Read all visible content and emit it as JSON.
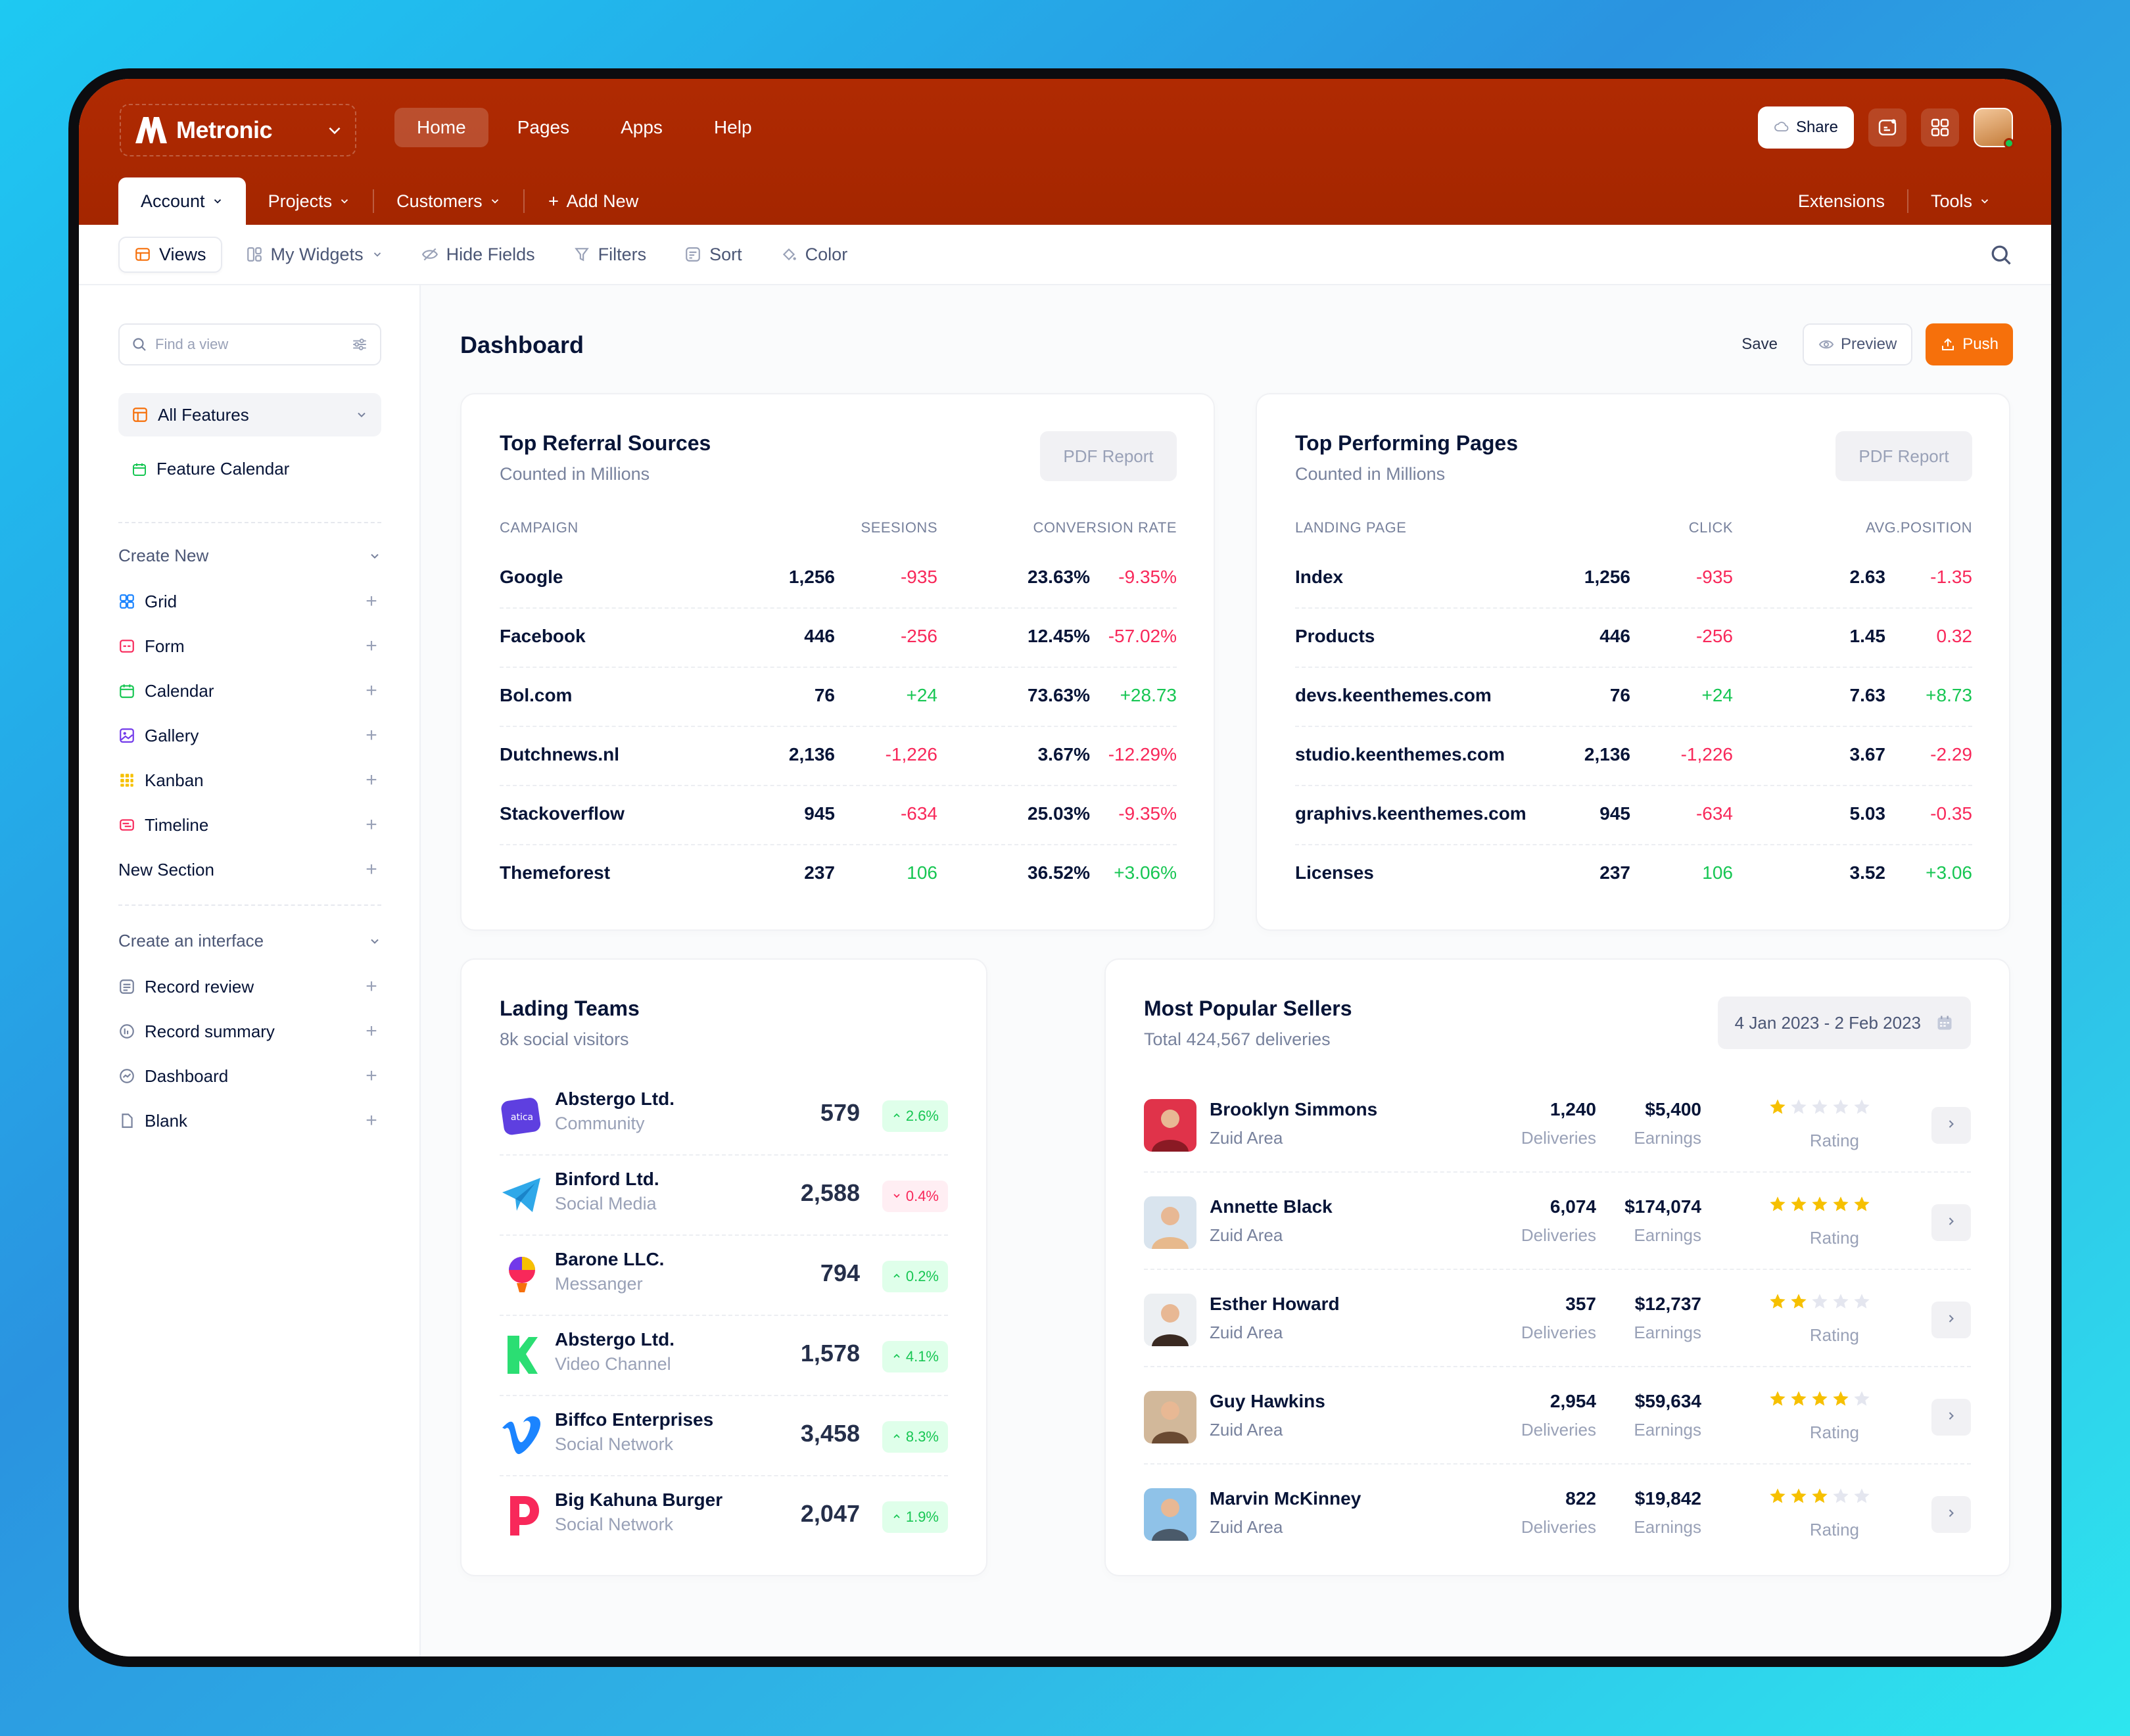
{
  "brand": {
    "name": "Metronic"
  },
  "nav": {
    "items": [
      "Home",
      "Pages",
      "Apps",
      "Help"
    ],
    "active": "Home"
  },
  "header": {
    "share_label": "Share"
  },
  "subnav": {
    "items": [
      "Account",
      "Projects",
      "Customers",
      "Add New"
    ],
    "right": [
      "Extensions",
      "Tools"
    ]
  },
  "toolbar": {
    "items": [
      "Views",
      "My Widgets",
      "Hide Fields",
      "Filters",
      "Sort",
      "Color"
    ]
  },
  "sidebar": {
    "find_placeholder": "Find a view",
    "all_features": "All Features",
    "feature_calendar": "Feature Calendar",
    "create_new": {
      "title": "Create New",
      "items": [
        "Grid",
        "Form",
        "Calendar",
        "Gallery",
        "Kanban",
        "Timeline",
        "New Section"
      ]
    },
    "create_interface": {
      "title": "Create an interface",
      "items": [
        "Record review",
        "Record summary",
        "Dashboard",
        "Blank"
      ]
    }
  },
  "page": {
    "title": "Dashboard",
    "save": "Save",
    "preview": "Preview",
    "push": "Push"
  },
  "referral": {
    "title": "Top Referral Sources",
    "subtitle": "Counted in Millions",
    "pdf": "PDF Report",
    "headers": [
      "Campaign",
      "Seesions",
      "Conversion Rate"
    ],
    "rows": [
      {
        "name": "Google",
        "sessions": "1,256",
        "sdelta": "-935",
        "rate": "23.63%",
        "rdelta": "-9.35%"
      },
      {
        "name": "Facebook",
        "sessions": "446",
        "sdelta": "-256",
        "rate": "12.45%",
        "rdelta": "-57.02%"
      },
      {
        "name": "Bol.com",
        "sessions": "76",
        "sdelta": "+24",
        "rate": "73.63%",
        "rdelta": "+28.73"
      },
      {
        "name": "Dutchnews.nl",
        "sessions": "2,136",
        "sdelta": "-1,226",
        "rate": "3.67%",
        "rdelta": "-12.29%"
      },
      {
        "name": "Stackoverflow",
        "sessions": "945",
        "sdelta": "-634",
        "rate": "25.03%",
        "rdelta": "-9.35%"
      },
      {
        "name": "Themeforest",
        "sessions": "237",
        "sdelta": "106",
        "rate": "36.52%",
        "rdelta": "+3.06%"
      }
    ]
  },
  "pages": {
    "title": "Top Performing Pages",
    "subtitle": "Counted in Millions",
    "pdf": "PDF Report",
    "headers": [
      "Landing Page",
      "Click",
      "Avg.Position"
    ],
    "rows": [
      {
        "name": "Index",
        "clicks": "1,256",
        "cdelta": "-935",
        "pos": "2.63",
        "pdelta": "-1.35"
      },
      {
        "name": "Products",
        "clicks": "446",
        "cdelta": "-256",
        "pos": "1.45",
        "pdelta": "0.32"
      },
      {
        "name": "devs.keenthemes.com",
        "clicks": "76",
        "cdelta": "+24",
        "pos": "7.63",
        "pdelta": "+8.73"
      },
      {
        "name": "studio.keenthemes.com",
        "clicks": "2,136",
        "cdelta": "-1,226",
        "pos": "3.67",
        "pdelta": "-2.29"
      },
      {
        "name": "graphivs.keenthemes.com",
        "clicks": "945",
        "cdelta": "-634",
        "pos": "5.03",
        "pdelta": "-0.35"
      },
      {
        "name": "Licenses",
        "clicks": "237",
        "cdelta": "106",
        "pos": "3.52",
        "pdelta": "+3.06"
      }
    ]
  },
  "teams": {
    "title": "Lading Teams",
    "subtitle": "8k social visitors",
    "rows": [
      {
        "name": "Abstergo Ltd.",
        "sub": "Community",
        "value": "579",
        "badge": "2.6%",
        "dir": "up"
      },
      {
        "name": "Binford Ltd.",
        "sub": "Social Media",
        "value": "2,588",
        "badge": "0.4%",
        "dir": "down"
      },
      {
        "name": "Barone LLC.",
        "sub": "Messanger",
        "value": "794",
        "badge": "0.2%",
        "dir": "up"
      },
      {
        "name": "Abstergo Ltd.",
        "sub": "Video Channel",
        "value": "1,578",
        "badge": "4.1%",
        "dir": "up"
      },
      {
        "name": "Biffco Enterprises",
        "sub": "Social Network",
        "value": "3,458",
        "badge": "8.3%",
        "dir": "up"
      },
      {
        "name": "Big Kahuna Burger",
        "sub": "Social Network",
        "value": "2,047",
        "badge": "1.9%",
        "dir": "up"
      }
    ]
  },
  "sellers": {
    "title": "Most Popular Sellers",
    "subtitle": "Total 424,567 deliveries",
    "date_range": "4 Jan 2023 - 2 Feb 2023",
    "labels": {
      "deliveries": "Deliveries",
      "earnings": "Earnings",
      "rating": "Rating"
    },
    "rows": [
      {
        "name": "Brooklyn Simmons",
        "area": "Zuid Area",
        "deliveries": "1,240",
        "earnings": "$5,400",
        "rating": 1
      },
      {
        "name": "Annette Black",
        "area": "Zuid Area",
        "deliveries": "6,074",
        "earnings": "$174,074",
        "rating": 5
      },
      {
        "name": "Esther Howard",
        "area": "Zuid Area",
        "deliveries": "357",
        "earnings": "$12,737",
        "rating": 2
      },
      {
        "name": "Guy Hawkins",
        "area": "Zuid Area",
        "deliveries": "2,954",
        "earnings": "$59,634",
        "rating": 4
      },
      {
        "name": "Marvin McKinney",
        "area": "Zuid Area",
        "deliveries": "822",
        "earnings": "$19,842",
        "rating": 3
      }
    ]
  },
  "colors": {
    "header": "#a32400",
    "accent": "#f6700b",
    "positive": "#17c653",
    "negative": "#f8285a",
    "star": "#f6c000"
  }
}
